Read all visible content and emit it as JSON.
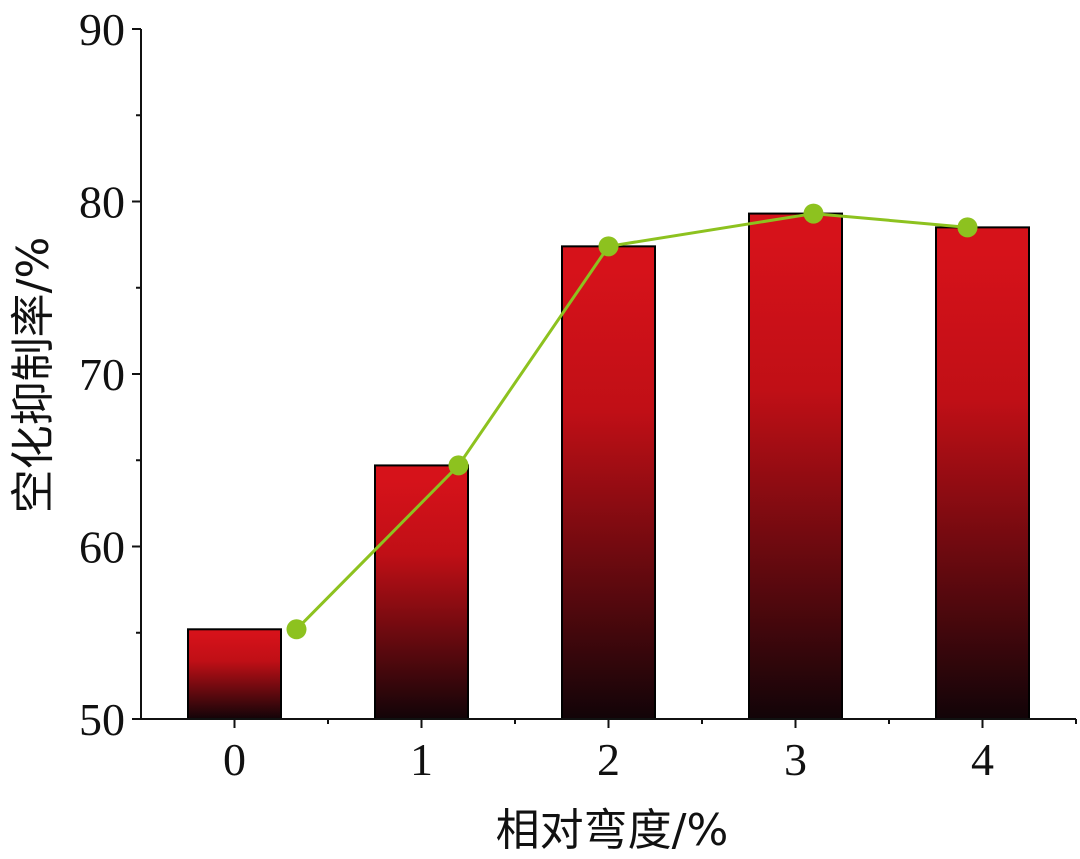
{
  "chart_data": {
    "type": "bar",
    "title": "",
    "xlabel": "相对弯度/%",
    "ylabel": "空化抑制率/%",
    "categories": [
      "0",
      "1",
      "2",
      "3",
      "4"
    ],
    "ylim": [
      50,
      90
    ],
    "yticks": [
      50,
      60,
      70,
      80,
      90
    ],
    "grid": false,
    "series": [
      {
        "kind": "bar",
        "values": [
          55.2,
          64.7,
          77.4,
          79.3,
          78.5
        ]
      },
      {
        "kind": "line",
        "values": [
          55.2,
          64.7,
          77.4,
          79.3,
          78.5
        ]
      }
    ],
    "colors": {
      "bar_top": "#d6121a",
      "bar_bottom": "#120408",
      "line": "#8dc21f",
      "axis": "#111111"
    }
  }
}
